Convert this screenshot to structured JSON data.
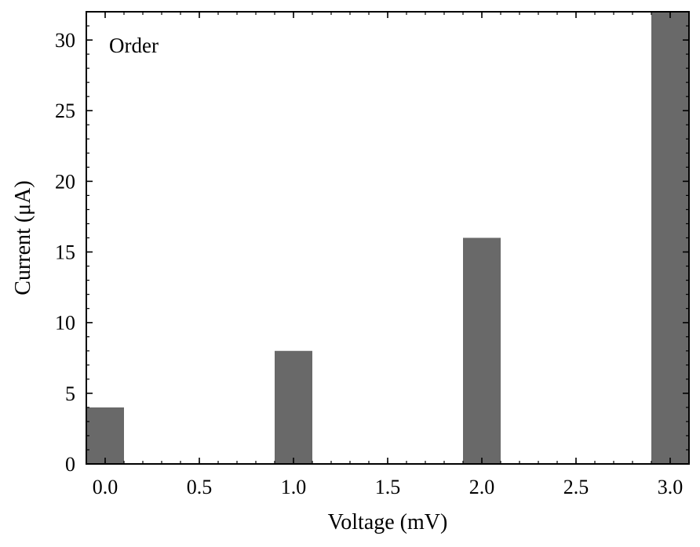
{
  "chart_data": {
    "type": "bar",
    "x": [
      0.0,
      1.0,
      2.0,
      3.0
    ],
    "values": [
      4,
      8,
      16,
      32
    ],
    "bar_width": 0.2,
    "bar_color": "#696969",
    "xlabel": "Voltage (mV)",
    "ylabel": "Current (μA)",
    "xlim": [
      -0.1,
      3.1
    ],
    "ylim": [
      0,
      32
    ],
    "xticks": [
      0.0,
      0.5,
      1.0,
      1.5,
      2.0,
      2.5,
      3.0
    ],
    "xtick_labels": [
      "0.0",
      "0.5",
      "1.0",
      "1.5",
      "2.0",
      "2.5",
      "3.0"
    ],
    "yticks": [
      0,
      5,
      10,
      15,
      20,
      25,
      30
    ],
    "ytick_labels": [
      "0",
      "5",
      "10",
      "15",
      "20",
      "25",
      "30"
    ],
    "x_minor_step": 0.1,
    "y_minor_step": 1,
    "annotation": "Order",
    "annotation_position": "top-left",
    "grid": false
  }
}
